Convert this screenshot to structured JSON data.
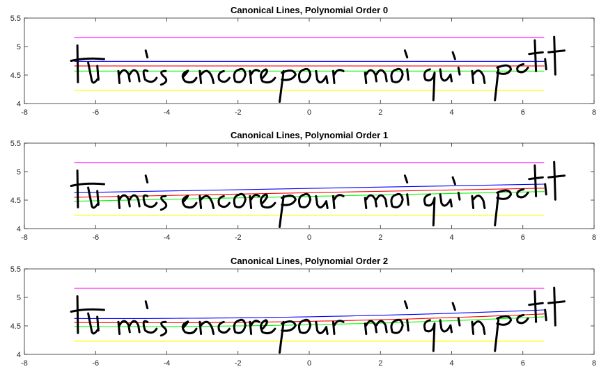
{
  "chart_data": [
    {
      "type": "line",
      "title": "Canonical Lines, Polynomial Order 0",
      "xlabel": "",
      "ylabel": "",
      "xlim": [
        -8,
        8
      ],
      "ylim": [
        4,
        5.5
      ],
      "xticks": [
        "-8",
        "-6",
        "-4",
        "-2",
        "0",
        "2",
        "4",
        "6",
        "8"
      ],
      "yticks": [
        "4",
        "4.5",
        "5",
        "5.5"
      ],
      "x_range": [
        -6.6,
        6.6
      ],
      "series": [
        {
          "color": "#ff00ff",
          "values": [
            5.16,
            5.16
          ]
        },
        {
          "color": "#0000ff",
          "values": [
            4.74,
            4.74
          ]
        },
        {
          "color": "#ff0000",
          "values": [
            4.66,
            4.66
          ]
        },
        {
          "color": "#00ff00",
          "values": [
            4.57,
            4.57
          ]
        },
        {
          "color": "#ffff00",
          "values": [
            4.23,
            4.23
          ]
        }
      ],
      "handwriting_text": "tu m'es encore pour moi qu'un petit"
    },
    {
      "type": "line",
      "title": "Canonical Lines, Polynomial Order 1",
      "xlabel": "",
      "ylabel": "",
      "xlim": [
        -8,
        8
      ],
      "ylim": [
        4,
        5.5
      ],
      "xticks": [
        "-8",
        "-6",
        "-4",
        "-2",
        "0",
        "2",
        "4",
        "6",
        "8"
      ],
      "yticks": [
        "4",
        "4.5",
        "5",
        "5.5"
      ],
      "x_range": [
        -6.6,
        6.6
      ],
      "series": [
        {
          "color": "#ff00ff",
          "values": [
            5.16,
            5.16
          ]
        },
        {
          "color": "#0000ff",
          "values": [
            4.63,
            4.78
          ]
        },
        {
          "color": "#ff0000",
          "values": [
            4.55,
            4.71
          ]
        },
        {
          "color": "#00ff00",
          "values": [
            4.48,
            4.65
          ]
        },
        {
          "color": "#ffff00",
          "values": [
            4.23,
            4.23
          ]
        }
      ],
      "handwriting_text": "tu m'es encore pour moi qu'un petit"
    },
    {
      "type": "line",
      "title": "Canonical Lines, Polynomial Order 2",
      "xlabel": "",
      "ylabel": "",
      "xlim": [
        -8,
        8
      ],
      "ylim": [
        4,
        5.5
      ],
      "xticks": [
        "-8",
        "-6",
        "-4",
        "-2",
        "0",
        "2",
        "4",
        "6",
        "8"
      ],
      "yticks": [
        "4",
        "4.5",
        "5",
        "5.5"
      ],
      "x_range": [
        -6.6,
        6.6
      ],
      "series": [
        {
          "color": "#ff00ff",
          "values": [
            5.16,
            5.16
          ]
        },
        {
          "color": "#0000ff",
          "values": [
            4.63,
            4.66,
            4.78
          ]
        },
        {
          "color": "#ff0000",
          "values": [
            4.56,
            4.58,
            4.71
          ]
        },
        {
          "color": "#00ff00",
          "values": [
            4.49,
            4.52,
            4.66
          ]
        },
        {
          "color": "#ffff00",
          "values": [
            4.23,
            4.23
          ]
        }
      ],
      "handwriting_text": "tu m'es encore pour moi qu'un petit"
    }
  ]
}
